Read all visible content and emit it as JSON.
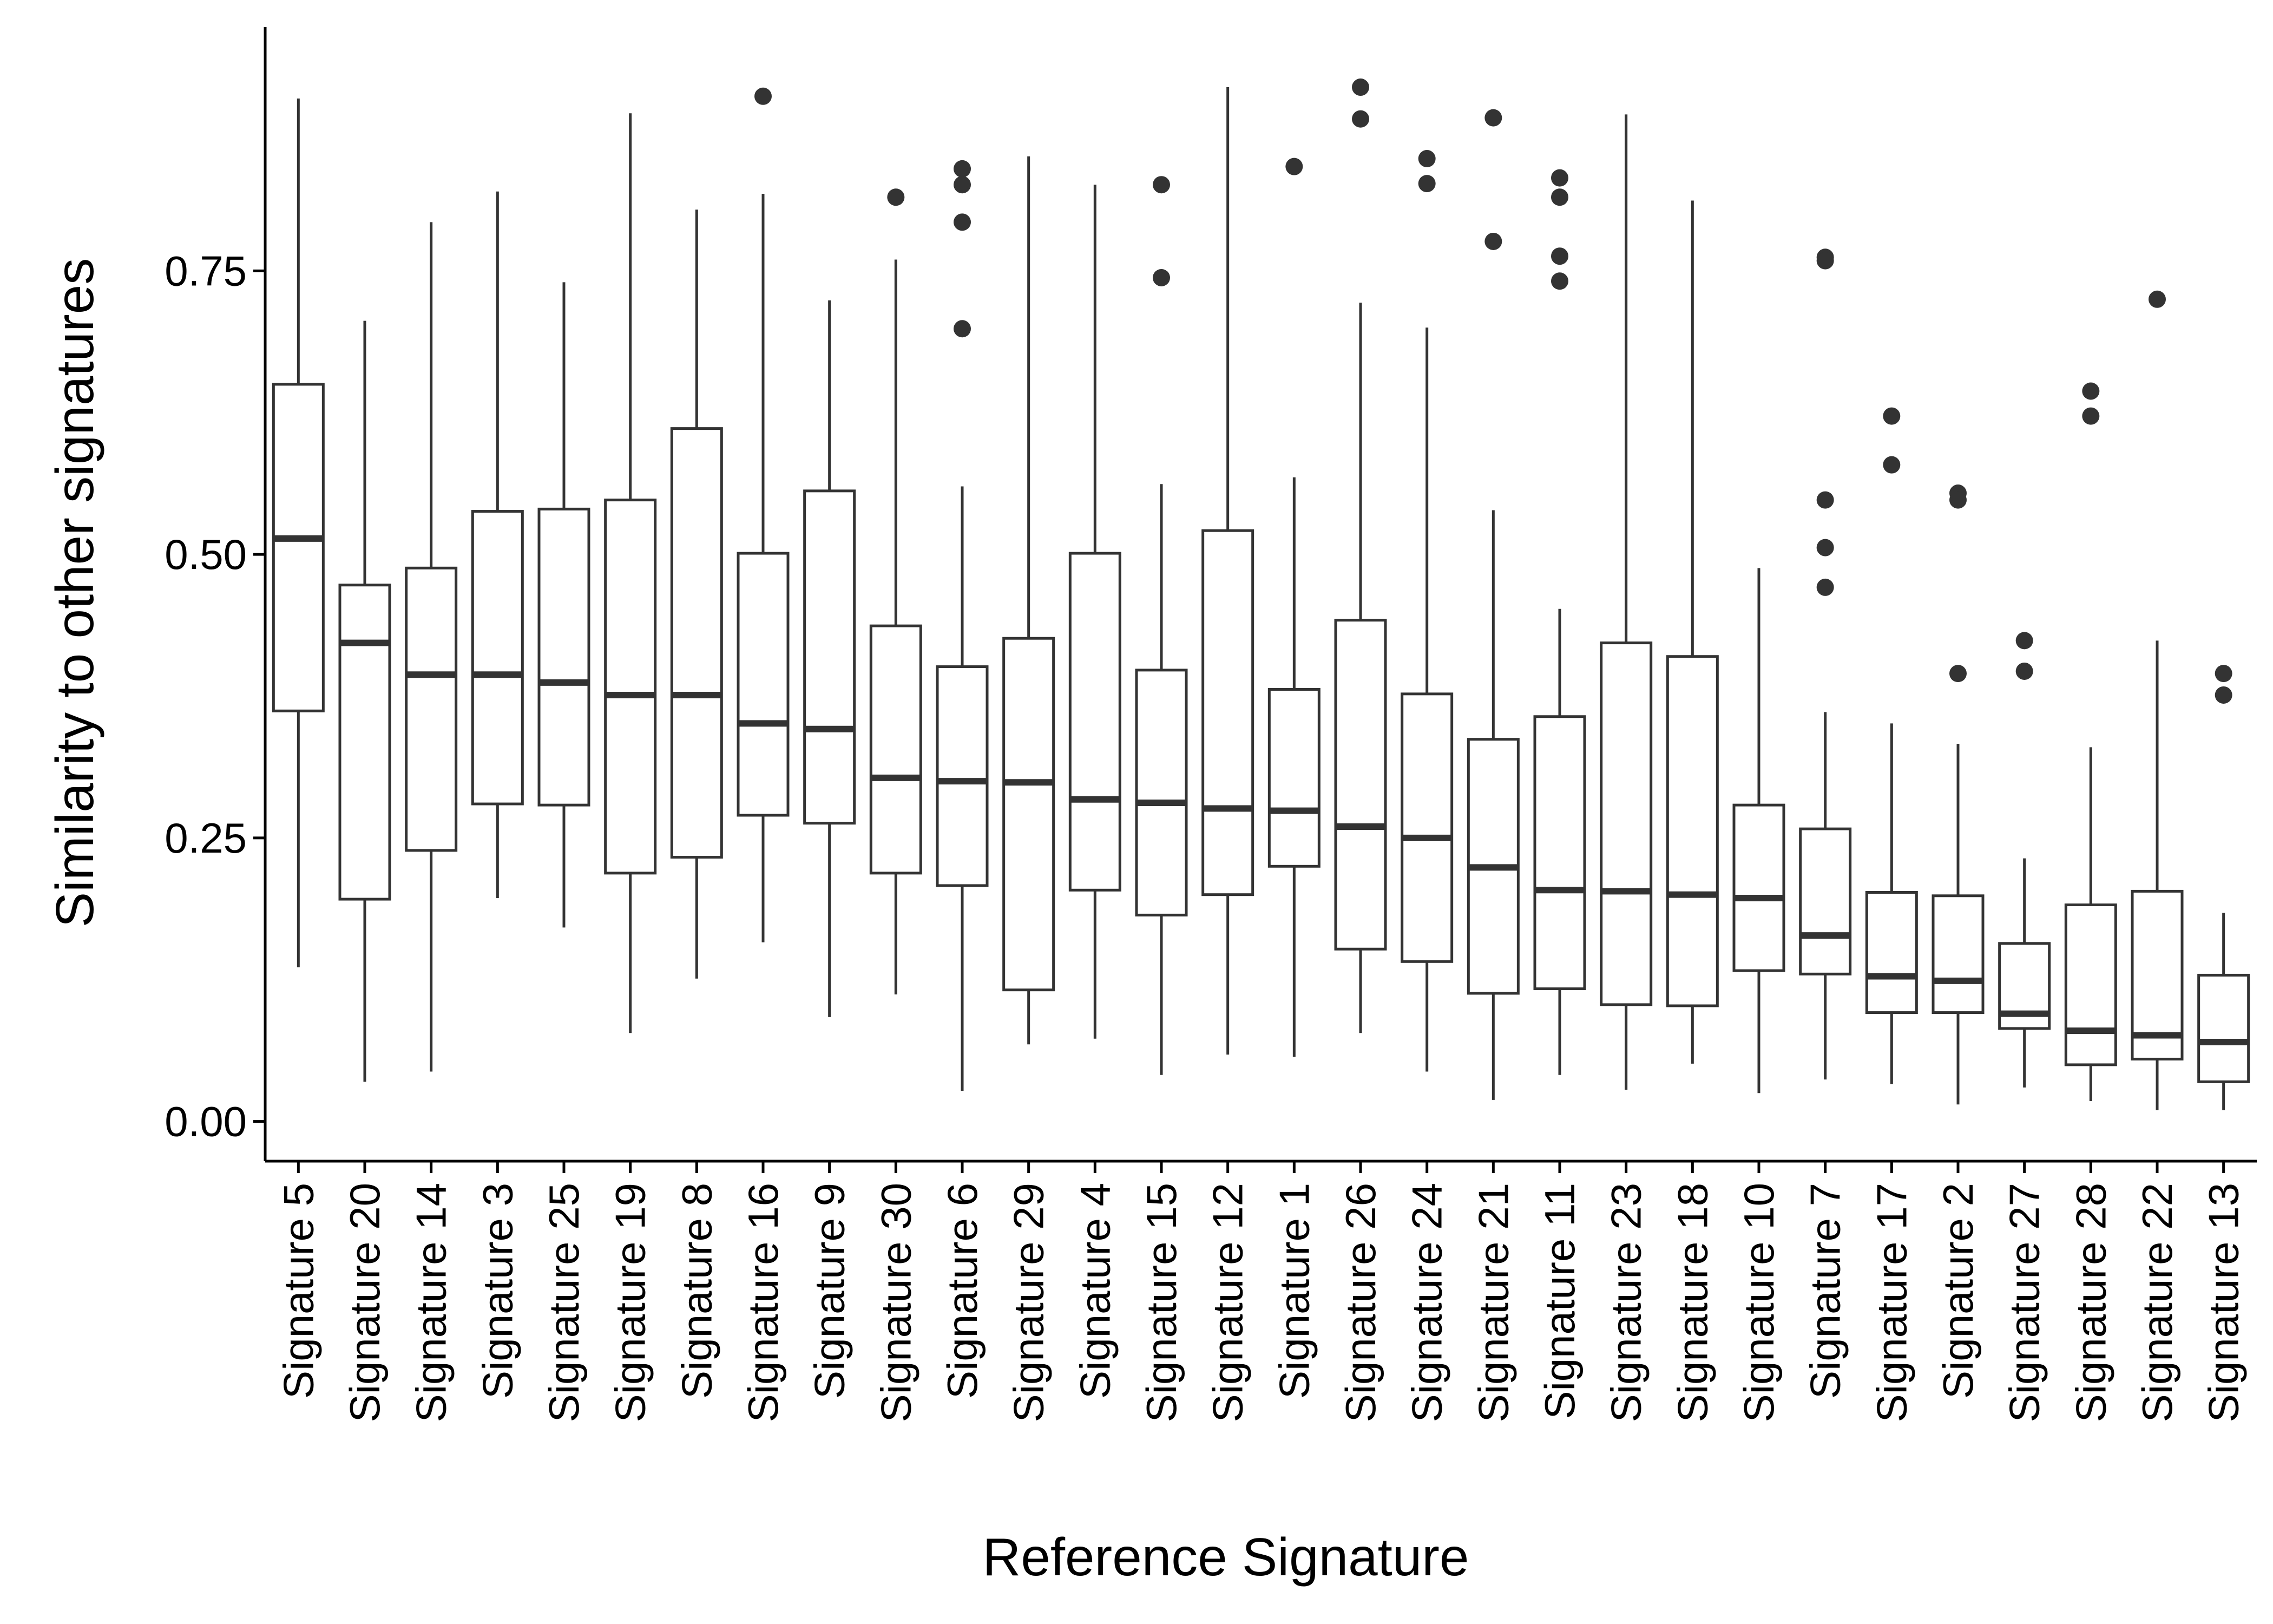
{
  "chart_data": {
    "type": "boxplot",
    "title": "",
    "xlabel": "Reference Signature",
    "ylabel": "Similarity to other signatures",
    "ylim": [
      -0.035,
      0.965
    ],
    "yticks": [
      0.0,
      0.25,
      0.5,
      0.75
    ],
    "ytick_labels": [
      "0.00",
      "0.25",
      "0.50",
      "0.75"
    ],
    "grid": false,
    "legend": "none",
    "colors": {
      "box_stroke": "#333333",
      "box_fill": "#ffffff",
      "axis": "#000000",
      "outlier": "#333333"
    },
    "categories": [
      "Signature 5",
      "Signature 20",
      "Signature 14",
      "Signature 3",
      "Signature 25",
      "Signature 19",
      "Signature 8",
      "Signature 16",
      "Signature 9",
      "Signature 30",
      "Signature 6",
      "Signature 29",
      "Signature 4",
      "Signature 15",
      "Signature 12",
      "Signature 1",
      "Signature 26",
      "Signature 24",
      "Signature 21",
      "Signature 11",
      "Signature 23",
      "Signature 18",
      "Signature 10",
      "Signature 7",
      "Signature 17",
      "Signature 2",
      "Signature 27",
      "Signature 28",
      "Signature 22",
      "Signature 13"
    ],
    "boxes": [
      {
        "min": 0.136,
        "q1": 0.362,
        "median": 0.514,
        "q3": 0.65,
        "max": 0.902,
        "outliers": []
      },
      {
        "min": 0.035,
        "q1": 0.196,
        "median": 0.422,
        "q3": 0.473,
        "max": 0.706,
        "outliers": []
      },
      {
        "min": 0.044,
        "q1": 0.239,
        "median": 0.394,
        "q3": 0.488,
        "max": 0.793,
        "outliers": []
      },
      {
        "min": 0.197,
        "q1": 0.28,
        "median": 0.394,
        "q3": 0.538,
        "max": 0.82,
        "outliers": []
      },
      {
        "min": 0.171,
        "q1": 0.279,
        "median": 0.387,
        "q3": 0.54,
        "max": 0.74,
        "outliers": []
      },
      {
        "min": 0.078,
        "q1": 0.219,
        "median": 0.376,
        "q3": 0.548,
        "max": 0.889,
        "outliers": []
      },
      {
        "min": 0.126,
        "q1": 0.233,
        "median": 0.376,
        "q3": 0.611,
        "max": 0.804,
        "outliers": []
      },
      {
        "min": 0.158,
        "q1": 0.27,
        "median": 0.351,
        "q3": 0.501,
        "max": 0.818,
        "outliers": [
          0.904
        ]
      },
      {
        "min": 0.092,
        "q1": 0.263,
        "median": 0.346,
        "q3": 0.556,
        "max": 0.724,
        "outliers": []
      },
      {
        "min": 0.112,
        "q1": 0.219,
        "median": 0.303,
        "q3": 0.437,
        "max": 0.76,
        "outliers": [
          0.815
        ]
      },
      {
        "min": 0.027,
        "q1": 0.208,
        "median": 0.3,
        "q3": 0.401,
        "max": 0.56,
        "outliers": [
          0.84,
          0.826,
          0.793,
          0.699
        ]
      },
      {
        "min": 0.068,
        "q1": 0.116,
        "median": 0.299,
        "q3": 0.426,
        "max": 0.851,
        "outliers": []
      },
      {
        "min": 0.073,
        "q1": 0.204,
        "median": 0.284,
        "q3": 0.501,
        "max": 0.826,
        "outliers": []
      },
      {
        "min": 0.041,
        "q1": 0.182,
        "median": 0.281,
        "q3": 0.398,
        "max": 0.562,
        "outliers": [
          0.826,
          0.744
        ]
      },
      {
        "min": 0.059,
        "q1": 0.2,
        "median": 0.276,
        "q3": 0.521,
        "max": 0.912,
        "outliers": []
      },
      {
        "min": 0.057,
        "q1": 0.225,
        "median": 0.274,
        "q3": 0.381,
        "max": 0.568,
        "outliers": [
          0.842
        ]
      },
      {
        "min": 0.078,
        "q1": 0.152,
        "median": 0.26,
        "q3": 0.442,
        "max": 0.722,
        "outliers": [
          0.912,
          0.884
        ]
      },
      {
        "min": 0.044,
        "q1": 0.141,
        "median": 0.25,
        "q3": 0.377,
        "max": 0.7,
        "outliers": [
          0.849,
          0.827
        ]
      },
      {
        "min": 0.019,
        "q1": 0.113,
        "median": 0.224,
        "q3": 0.337,
        "max": 0.539,
        "outliers": [
          0.885,
          0.776
        ]
      },
      {
        "min": 0.041,
        "q1": 0.117,
        "median": 0.204,
        "q3": 0.357,
        "max": 0.452,
        "outliers": [
          0.832,
          0.815,
          0.763,
          0.741
        ]
      },
      {
        "min": 0.028,
        "q1": 0.103,
        "median": 0.203,
        "q3": 0.422,
        "max": 0.888,
        "outliers": []
      },
      {
        "min": 0.051,
        "q1": 0.102,
        "median": 0.2,
        "q3": 0.41,
        "max": 0.812,
        "outliers": []
      },
      {
        "min": 0.025,
        "q1": 0.133,
        "median": 0.197,
        "q3": 0.279,
        "max": 0.488,
        "outliers": []
      },
      {
        "min": 0.037,
        "q1": 0.13,
        "median": 0.164,
        "q3": 0.258,
        "max": 0.361,
        "outliers": [
          0.762,
          0.759,
          0.548,
          0.506,
          0.471
        ]
      },
      {
        "min": 0.033,
        "q1": 0.096,
        "median": 0.128,
        "q3": 0.202,
        "max": 0.351,
        "outliers": [
          0.622,
          0.579
        ]
      },
      {
        "min": 0.015,
        "q1": 0.096,
        "median": 0.124,
        "q3": 0.199,
        "max": 0.333,
        "outliers": [
          0.554,
          0.548,
          0.395
        ]
      },
      {
        "min": 0.03,
        "q1": 0.082,
        "median": 0.095,
        "q3": 0.157,
        "max": 0.232,
        "outliers": [
          0.424,
          0.397
        ]
      },
      {
        "min": 0.018,
        "q1": 0.05,
        "median": 0.08,
        "q3": 0.191,
        "max": 0.33,
        "outliers": [
          0.644,
          0.622
        ]
      },
      {
        "min": 0.01,
        "q1": 0.055,
        "median": 0.076,
        "q3": 0.203,
        "max": 0.424,
        "outliers": [
          0.725
        ]
      },
      {
        "min": 0.01,
        "q1": 0.035,
        "median": 0.07,
        "q3": 0.129,
        "max": 0.184,
        "outliers": [
          0.395,
          0.376
        ]
      }
    ]
  }
}
